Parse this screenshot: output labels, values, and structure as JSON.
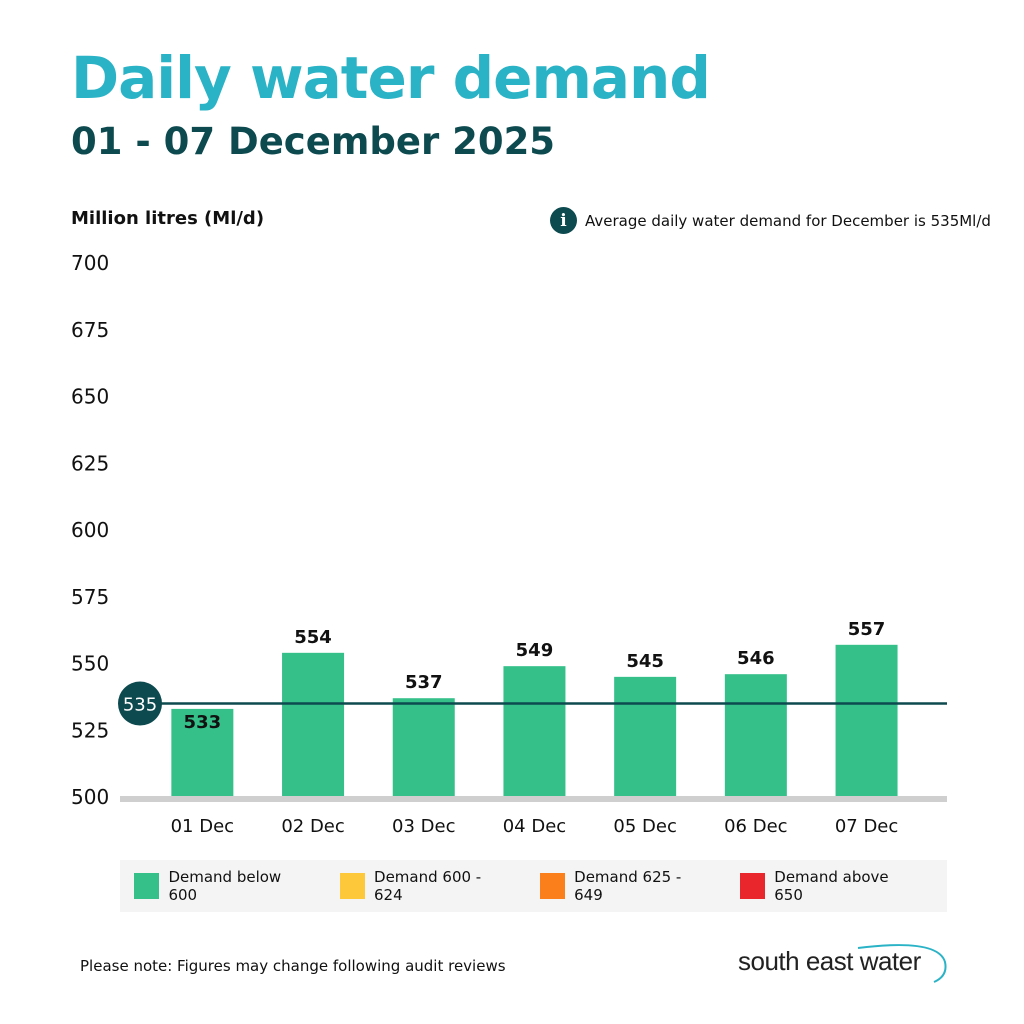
{
  "title": "Daily water demand",
  "subtitle": "01 - 07 December 2025",
  "info_text": "Average daily water demand for December  is 535Ml/d",
  "info_icon": "info-icon",
  "footer_note": "Please note: Figures may change following audit reviews",
  "logo_text": "south east water",
  "chart_data": {
    "type": "bar",
    "ylabel": "Million litres (Ml/d)",
    "ylim": [
      500,
      700
    ],
    "yticks": [
      "700",
      "675",
      "650",
      "625",
      "600",
      "575",
      "550",
      "525",
      "500"
    ],
    "categories": [
      "01 Dec",
      "02 Dec",
      "03 Dec",
      "04 Dec",
      "05 Dec",
      "06 Dec",
      "07 Dec"
    ],
    "values": [
      533,
      554,
      537,
      549,
      545,
      546,
      557
    ],
    "average": {
      "value": 535,
      "label": "535"
    },
    "bar_color": "#35c08a",
    "average_color": "#0d4a4f",
    "legend": [
      {
        "label": "Demand below 600",
        "color": "#35c08a"
      },
      {
        "label": "Demand 600 - 624",
        "color": "#fdc93a"
      },
      {
        "label": "Demand 625 - 649",
        "color": "#fb7f1a"
      },
      {
        "label": "Demand above 650",
        "color": "#e8262b"
      }
    ]
  }
}
